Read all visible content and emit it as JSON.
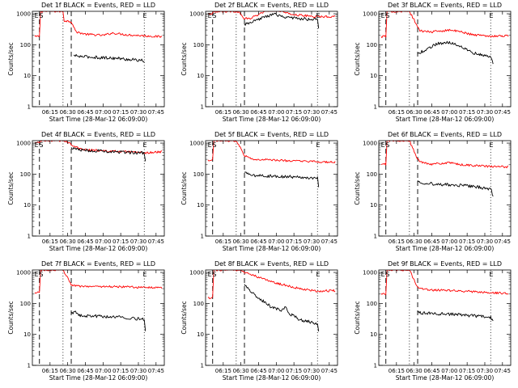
{
  "figure": {
    "x_ticks": [
      "06:15",
      "06:30",
      "06:45",
      "07:00",
      "07:15",
      "07:30",
      "07:45"
    ],
    "x_tick_minutes": [
      375,
      390,
      405,
      420,
      435,
      450,
      465
    ],
    "x_range_minutes": [
      360,
      472
    ],
    "y_ticks": [
      "1",
      "10",
      "100",
      "1000"
    ],
    "y_tick_values": [
      1,
      10,
      100,
      1000
    ],
    "y_range": [
      1,
      1200
    ],
    "ylabel": "Counts/sec",
    "xlabel": "Start Time (28-Mar-12 06:09:00)",
    "colors": {
      "events": "#000000",
      "lld": "#ff0000"
    }
  },
  "chart_data": [
    {
      "type": "line",
      "title": "Det 1f BLACK = Events, RED = LLD",
      "markers": [
        "E",
        "S"
      ],
      "end_marker": "E",
      "marker_minutes": {
        "E": 363.5,
        "S": 367.5,
        "end": 455.5
      },
      "lines": {
        "dashed": [
          366,
          393
        ],
        "dotted": [
          386,
          455
        ]
      },
      "series": [
        {
          "name": "LLD",
          "color": "red",
          "points": [
            [
              362,
              180
            ],
            [
              366,
              190
            ],
            [
              367,
              1200
            ],
            [
              386,
              1200
            ],
            [
              387,
              600
            ],
            [
              393,
              560
            ],
            [
              395,
              400
            ],
            [
              397,
              260
            ],
            [
              405,
              220
            ],
            [
              420,
              200
            ],
            [
              428,
              240
            ],
            [
              440,
              210
            ],
            [
              455,
              195
            ],
            [
              470,
              180
            ]
          ]
        },
        {
          "name": "Events",
          "color": "black",
          "points": [
            [
              395,
              45
            ],
            [
              400,
              42
            ],
            [
              410,
              40
            ],
            [
              420,
              38
            ],
            [
              430,
              37
            ],
            [
              440,
              34
            ],
            [
              450,
              32
            ],
            [
              455,
              30
            ]
          ]
        }
      ]
    },
    {
      "type": "line",
      "title": "Det 2f BLACK = Events, RED = LLD",
      "markers": [
        "E",
        "S"
      ],
      "end_marker": "E",
      "marker_minutes": {
        "E": 363.5,
        "S": 367.5,
        "end": 455.5
      },
      "lines": {
        "dashed": [
          366,
          393
        ],
        "dotted": [
          386,
          455
        ]
      },
      "series": [
        {
          "name": "LLD",
          "color": "red",
          "points": [
            [
              362,
              1000
            ],
            [
              366,
              1050
            ],
            [
              367,
              1200
            ],
            [
              386,
              1200
            ],
            [
              389,
              1100
            ],
            [
              392,
              700
            ],
            [
              398,
              700
            ],
            [
              410,
              1200
            ],
            [
              420,
              1400
            ],
            [
              430,
              1000
            ],
            [
              440,
              900
            ],
            [
              455,
              800
            ],
            [
              470,
              820
            ]
          ]
        },
        {
          "name": "Events",
          "color": "black",
          "points": [
            [
              393,
              450
            ],
            [
              398,
              500
            ],
            [
              405,
              650
            ],
            [
              410,
              800
            ],
            [
              418,
              950
            ],
            [
              425,
              850
            ],
            [
              430,
              750
            ],
            [
              440,
              700
            ],
            [
              455,
              650
            ],
            [
              456,
              300
            ]
          ]
        }
      ]
    },
    {
      "type": "line",
      "title": "Det 3f BLACK = Events, RED = LLD",
      "markers": [
        "E",
        "S"
      ],
      "end_marker": "E",
      "marker_minutes": {
        "E": 363.5,
        "S": 367.5,
        "end": 455.5
      },
      "lines": {
        "dashed": [
          366,
          393
        ],
        "dotted": [
          386,
          455
        ]
      },
      "series": [
        {
          "name": "LLD",
          "color": "red",
          "points": [
            [
              362,
              180
            ],
            [
              366,
              190
            ],
            [
              367,
              1200
            ],
            [
              386,
              1200
            ],
            [
              392,
              450
            ],
            [
              395,
              280
            ],
            [
              405,
              260
            ],
            [
              420,
              300
            ],
            [
              430,
              260
            ],
            [
              440,
              210
            ],
            [
              455,
              190
            ],
            [
              470,
              195
            ]
          ]
        },
        {
          "name": "Events",
          "color": "black",
          "points": [
            [
              393,
              50
            ],
            [
              400,
              70
            ],
            [
              410,
              110
            ],
            [
              420,
              120
            ],
            [
              430,
              90
            ],
            [
              440,
              55
            ],
            [
              455,
              40
            ],
            [
              457,
              25
            ]
          ]
        }
      ]
    },
    {
      "type": "line",
      "title": "Det 4f BLACK = Events, RED = LLD",
      "markers": [
        "E",
        "S"
      ],
      "end_marker": "E",
      "marker_minutes": {
        "E": 363.5,
        "S": 367.5,
        "end": 455.5
      },
      "lines": {
        "dashed": [
          366,
          393
        ],
        "dotted": [
          386,
          455
        ]
      },
      "series": [
        {
          "name": "LLD",
          "color": "red",
          "points": [
            [
              362,
              1000
            ],
            [
              366,
              1050
            ],
            [
              367,
              1200
            ],
            [
              386,
              1200
            ],
            [
              389,
              1150
            ],
            [
              395,
              800
            ],
            [
              400,
              650
            ],
            [
              420,
              560
            ],
            [
              440,
              520
            ],
            [
              455,
              480
            ],
            [
              470,
              520
            ]
          ]
        },
        {
          "name": "Events",
          "color": "black",
          "points": [
            [
              393,
              700
            ],
            [
              400,
              600
            ],
            [
              420,
              550
            ],
            [
              440,
              500
            ],
            [
              455,
              480
            ],
            [
              456,
              260
            ]
          ]
        }
      ]
    },
    {
      "type": "line",
      "title": "Det 5f BLACK = Events, RED = LLD",
      "markers": [
        "E",
        "S"
      ],
      "end_marker": "E",
      "marker_minutes": {
        "E": 363.5,
        "S": 367.5,
        "end": 455.5
      },
      "lines": {
        "dashed": [
          366,
          393
        ],
        "dotted": [
          386,
          455
        ]
      },
      "series": [
        {
          "name": "LLD",
          "color": "red",
          "points": [
            [
              362,
              280
            ],
            [
              366,
              300
            ],
            [
              367,
              1200
            ],
            [
              386,
              1200
            ],
            [
              390,
              700
            ],
            [
              393,
              400
            ],
            [
              400,
              300
            ],
            [
              420,
              280
            ],
            [
              440,
              260
            ],
            [
              455,
              250
            ],
            [
              470,
              240
            ]
          ]
        },
        {
          "name": "Events",
          "color": "black",
          "points": [
            [
              393,
              110
            ],
            [
              400,
              90
            ],
            [
              420,
              85
            ],
            [
              440,
              80
            ],
            [
              455,
              75
            ],
            [
              456,
              40
            ]
          ]
        }
      ]
    },
    {
      "type": "line",
      "title": "Det 6f BLACK = Events, RED = LLD",
      "markers": [
        "E",
        "S"
      ],
      "end_marker": "E",
      "marker_minutes": {
        "E": 363.5,
        "S": 367.5,
        "end": 455.5
      },
      "lines": {
        "dashed": [
          366,
          393
        ],
        "dotted": [
          386,
          455
        ]
      },
      "series": [
        {
          "name": "LLD",
          "color": "red",
          "points": [
            [
              362,
              200
            ],
            [
              366,
              210
            ],
            [
              367,
              1200
            ],
            [
              386,
              1200
            ],
            [
              392,
              350
            ],
            [
              395,
              250
            ],
            [
              405,
              210
            ],
            [
              420,
              230
            ],
            [
              430,
              200
            ],
            [
              440,
              190
            ],
            [
              455,
              175
            ],
            [
              470,
              170
            ]
          ]
        },
        {
          "name": "Events",
          "color": "black",
          "points": [
            [
              393,
              60
            ],
            [
              400,
              50
            ],
            [
              420,
              45
            ],
            [
              440,
              40
            ],
            [
              455,
              33
            ],
            [
              457,
              20
            ]
          ]
        }
      ]
    },
    {
      "type": "line",
      "title": "Det 7f BLACK = Events, RED = LLD",
      "markers": [
        "E",
        "S"
      ],
      "end_marker": "E",
      "marker_minutes": {
        "E": 363.5,
        "S": 367.5,
        "end": 455.5
      },
      "lines": {
        "dashed": [
          366,
          393
        ],
        "dotted": [
          386,
          455
        ]
      },
      "series": [
        {
          "name": "LLD",
          "color": "red",
          "points": [
            [
              362,
              220
            ],
            [
              366,
              230
            ],
            [
              367,
              1200
            ],
            [
              386,
              1200
            ],
            [
              390,
              700
            ],
            [
              393,
              400
            ],
            [
              400,
              360
            ],
            [
              420,
              350
            ],
            [
              440,
              340
            ],
            [
              455,
              330
            ],
            [
              470,
              320
            ]
          ]
        },
        {
          "name": "Events",
          "color": "black",
          "points": [
            [
              393,
              45
            ],
            [
              396,
              55
            ],
            [
              400,
              40
            ],
            [
              420,
              38
            ],
            [
              440,
              35
            ],
            [
              455,
              30
            ],
            [
              456,
              12
            ]
          ]
        }
      ]
    },
    {
      "type": "line",
      "title": "Det 8f BLACK = Events, RED = LLD",
      "markers": [
        "E",
        "S"
      ],
      "end_marker": "E",
      "marker_minutes": {
        "E": 363.5,
        "S": 367.5,
        "end": 455.5
      },
      "lines": {
        "dashed": [
          366,
          393
        ],
        "dotted": [
          386,
          455
        ]
      },
      "series": [
        {
          "name": "LLD",
          "color": "red",
          "points": [
            [
              362,
              150
            ],
            [
              366,
              160
            ],
            [
              367,
              1200
            ],
            [
              388,
              1200
            ],
            [
              393,
              1000
            ],
            [
              398,
              900
            ],
            [
              405,
              700
            ],
            [
              420,
              450
            ],
            [
              440,
              300
            ],
            [
              455,
              250
            ],
            [
              470,
              260
            ]
          ]
        },
        {
          "name": "Events",
          "color": "black",
          "points": [
            [
              393,
              400
            ],
            [
              398,
              250
            ],
            [
              405,
              150
            ],
            [
              415,
              80
            ],
            [
              425,
              60
            ],
            [
              428,
              80
            ],
            [
              430,
              50
            ],
            [
              440,
              30
            ],
            [
              455,
              22
            ],
            [
              456,
              12
            ]
          ]
        }
      ]
    },
    {
      "type": "line",
      "title": "Det 9f BLACK = Events, RED = LLD",
      "markers": [
        "E",
        "S"
      ],
      "end_marker": "E",
      "marker_minutes": {
        "E": 363.5,
        "S": 367.5,
        "end": 455.5
      },
      "lines": {
        "dashed": [
          366,
          393
        ],
        "dotted": [
          386,
          455
        ]
      },
      "series": [
        {
          "name": "LLD",
          "color": "red",
          "points": [
            [
              362,
              200
            ],
            [
              366,
              210
            ],
            [
              367,
              1200
            ],
            [
              386,
              1200
            ],
            [
              392,
              400
            ],
            [
              395,
              300
            ],
            [
              405,
              270
            ],
            [
              420,
              260
            ],
            [
              440,
              240
            ],
            [
              455,
              220
            ],
            [
              470,
              210
            ]
          ]
        },
        {
          "name": "Events",
          "color": "black",
          "points": [
            [
              393,
              50
            ],
            [
              400,
              48
            ],
            [
              420,
              45
            ],
            [
              440,
              40
            ],
            [
              455,
              35
            ],
            [
              457,
              25
            ]
          ]
        }
      ]
    }
  ]
}
